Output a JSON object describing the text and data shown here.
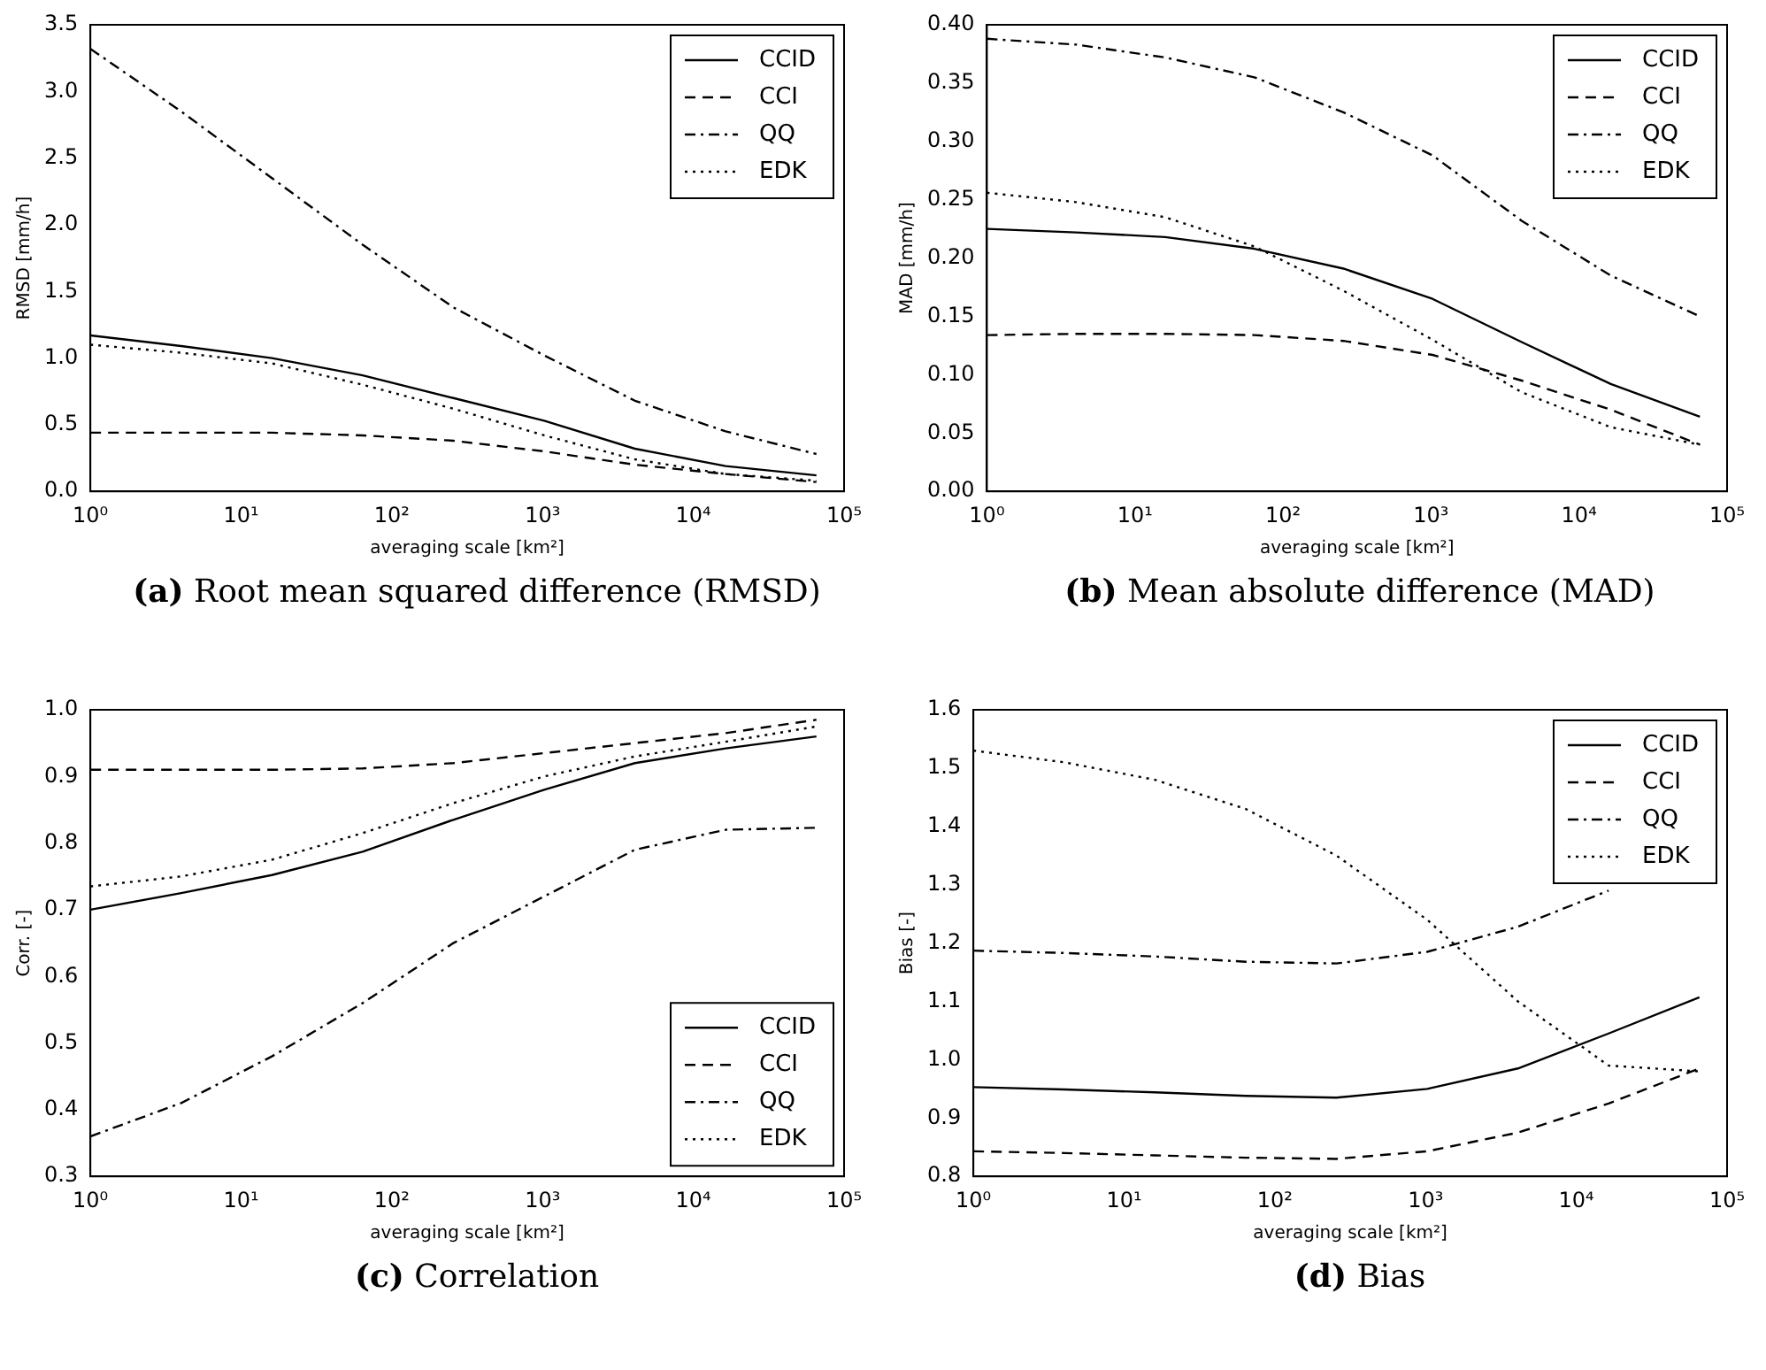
{
  "chart_data": [
    {
      "type": "line",
      "title": "(a) Root mean squared difference (RMSD)",
      "xlabel": "averaging scale [km²]",
      "ylabel": "RMSD [mm/h]",
      "log": "x",
      "grid": false,
      "legend": "top right",
      "marker": "none",
      "x": [
        1,
        4,
        16,
        64,
        256,
        1024,
        4096,
        16384,
        65536
      ],
      "xlim": [
        1,
        100000
      ],
      "xticks": [
        {
          "value": 1,
          "label": "10⁰"
        },
        {
          "value": 10,
          "label": "10¹"
        },
        {
          "value": 100,
          "label": "10²"
        },
        {
          "value": 1000,
          "label": "10³"
        },
        {
          "value": 10000,
          "label": "10⁴"
        },
        {
          "value": 100000,
          "label": "10⁵"
        }
      ],
      "ylim": [
        0,
        3.5
      ],
      "yticks": [
        {
          "value": 0,
          "label": "0.0"
        },
        {
          "value": 0.5,
          "label": "0.5"
        },
        {
          "value": 1,
          "label": "1.0"
        },
        {
          "value": 1.5,
          "label": "1.5"
        },
        {
          "value": 2,
          "label": "2.0"
        },
        {
          "value": 2.5,
          "label": "2.5"
        },
        {
          "value": 3,
          "label": "3.0"
        },
        {
          "value": 3.5,
          "label": "3.5"
        }
      ],
      "series": [
        {
          "name": "CCID",
          "color": "#000000",
          "line_style": "solid",
          "values": [
            1.17,
            1.09,
            1.0,
            0.87,
            0.7,
            0.53,
            0.32,
            0.19,
            0.12
          ]
        },
        {
          "name": "CCI",
          "color": "#000000",
          "line_style": "dashed",
          "values": [
            0.44,
            0.44,
            0.44,
            0.42,
            0.38,
            0.3,
            0.2,
            0.13,
            0.07
          ]
        },
        {
          "name": "QQ",
          "color": "#000000",
          "line_style": "dashdot",
          "values": [
            3.32,
            2.85,
            2.35,
            1.85,
            1.38,
            1.02,
            0.68,
            0.45,
            0.28
          ]
        },
        {
          "name": "EDK",
          "color": "#000000",
          "line_style": "dotted",
          "values": [
            1.1,
            1.04,
            0.96,
            0.8,
            0.62,
            0.42,
            0.24,
            0.13,
            0.08
          ]
        }
      ]
    },
    {
      "type": "line",
      "title": "(b) Mean absolute difference (MAD)",
      "xlabel": "averaging scale [km²]",
      "ylabel": "MAD [mm/h]",
      "log": "x",
      "grid": false,
      "legend": "top right",
      "marker": "none",
      "x": [
        1,
        4,
        16,
        64,
        256,
        1024,
        4096,
        16384,
        65536
      ],
      "xlim": [
        1,
        100000
      ],
      "xticks": [
        {
          "value": 1,
          "label": "10⁰"
        },
        {
          "value": 10,
          "label": "10¹"
        },
        {
          "value": 100,
          "label": "10²"
        },
        {
          "value": 1000,
          "label": "10³"
        },
        {
          "value": 10000,
          "label": "10⁴"
        },
        {
          "value": 100000,
          "label": "10⁵"
        }
      ],
      "ylim": [
        0,
        0.4
      ],
      "yticks": [
        {
          "value": 0,
          "label": "0.00"
        },
        {
          "value": 0.05,
          "label": "0.05"
        },
        {
          "value": 0.1,
          "label": "0.10"
        },
        {
          "value": 0.15,
          "label": "0.15"
        },
        {
          "value": 0.2,
          "label": "0.20"
        },
        {
          "value": 0.25,
          "label": "0.25"
        },
        {
          "value": 0.3,
          "label": "0.30"
        },
        {
          "value": 0.35,
          "label": "0.35"
        },
        {
          "value": 0.4,
          "label": "0.40"
        }
      ],
      "series": [
        {
          "name": "CCID",
          "color": "#000000",
          "line_style": "solid",
          "values": [
            0.225,
            0.222,
            0.218,
            0.208,
            0.191,
            0.165,
            0.128,
            0.092,
            0.064
          ]
        },
        {
          "name": "CCI",
          "color": "#000000",
          "line_style": "dashed",
          "values": [
            0.134,
            0.135,
            0.135,
            0.134,
            0.129,
            0.117,
            0.095,
            0.07,
            0.04
          ]
        },
        {
          "name": "QQ",
          "color": "#000000",
          "line_style": "dashdot",
          "values": [
            0.388,
            0.383,
            0.372,
            0.355,
            0.325,
            0.288,
            0.232,
            0.185,
            0.15
          ]
        },
        {
          "name": "EDK",
          "color": "#000000",
          "line_style": "dotted",
          "values": [
            0.256,
            0.248,
            0.235,
            0.21,
            0.172,
            0.13,
            0.085,
            0.055,
            0.04
          ]
        }
      ]
    },
    {
      "type": "line",
      "title": "(c) Correlation",
      "xlabel": "averaging scale [km²]",
      "ylabel": "Corr. [-]",
      "log": "x",
      "grid": false,
      "legend": "bottom right",
      "marker": "none",
      "x": [
        1,
        4,
        16,
        64,
        256,
        1024,
        4096,
        16384,
        65536
      ],
      "xlim": [
        1,
        100000
      ],
      "xticks": [
        {
          "value": 1,
          "label": "10⁰"
        },
        {
          "value": 10,
          "label": "10¹"
        },
        {
          "value": 100,
          "label": "10²"
        },
        {
          "value": 1000,
          "label": "10³"
        },
        {
          "value": 10000,
          "label": "10⁴"
        },
        {
          "value": 100000,
          "label": "10⁵"
        }
      ],
      "ylim": [
        0.3,
        1.0
      ],
      "yticks": [
        0.3,
        0.4,
        0.5,
        0.6,
        0.7,
        0.8,
        0.9,
        {
          "value": 1,
          "label": "1.0"
        }
      ],
      "series": [
        {
          "name": "CCID",
          "color": "#000000",
          "line_style": "solid",
          "values": [
            0.7,
            0.725,
            0.752,
            0.787,
            0.835,
            0.88,
            0.92,
            0.942,
            0.96
          ]
        },
        {
          "name": "CCI",
          "color": "#000000",
          "line_style": "dashed",
          "values": [
            0.91,
            0.91,
            0.91,
            0.912,
            0.92,
            0.935,
            0.95,
            0.965,
            0.985
          ]
        },
        {
          "name": "QQ",
          "color": "#000000",
          "line_style": "dashdot",
          "values": [
            0.36,
            0.41,
            0.48,
            0.56,
            0.65,
            0.72,
            0.79,
            0.82,
            0.823
          ]
        },
        {
          "name": "EDK",
          "color": "#000000",
          "line_style": "dotted",
          "values": [
            0.735,
            0.75,
            0.775,
            0.815,
            0.86,
            0.9,
            0.93,
            0.952,
            0.975
          ]
        }
      ]
    },
    {
      "type": "line",
      "title": "(d) Bias",
      "xlabel": "averaging scale [km²]",
      "ylabel": "Bias [-]",
      "log": "x",
      "grid": false,
      "legend": "top right",
      "marker": "none",
      "x": [
        1,
        4,
        16,
        64,
        256,
        1024,
        4096,
        16384,
        65536
      ],
      "xlim": [
        1,
        100000
      ],
      "xticks": [
        {
          "value": 1,
          "label": "10⁰"
        },
        {
          "value": 10,
          "label": "10¹"
        },
        {
          "value": 100,
          "label": "10²"
        },
        {
          "value": 1000,
          "label": "10³"
        },
        {
          "value": 10000,
          "label": "10⁴"
        },
        {
          "value": 100000,
          "label": "10⁵"
        }
      ],
      "ylim": [
        0.8,
        1.6
      ],
      "yticks": [
        0.8,
        0.9,
        {
          "value": 1,
          "label": "1.0"
        },
        1.1,
        1.2,
        1.3,
        1.4,
        1.5,
        1.6
      ],
      "series": [
        {
          "name": "CCID",
          "color": "#000000",
          "line_style": "solid",
          "values": [
            0.953,
            0.949,
            0.944,
            0.938,
            0.935,
            0.95,
            0.985,
            1.045,
            1.107
          ]
        },
        {
          "name": "CCI",
          "color": "#000000",
          "line_style": "dashed",
          "values": [
            0.843,
            0.84,
            0.836,
            0.832,
            0.83,
            0.843,
            0.875,
            0.925,
            0.985
          ]
        },
        {
          "name": "QQ",
          "color": "#000000",
          "line_style": "dashdot",
          "values": [
            1.187,
            1.183,
            1.177,
            1.168,
            1.165,
            1.185,
            1.228,
            1.29,
            null
          ]
        },
        {
          "name": "EDK",
          "color": "#000000",
          "line_style": "dotted",
          "values": [
            1.53,
            1.51,
            1.48,
            1.43,
            1.35,
            1.24,
            1.1,
            0.99,
            0.98
          ]
        }
      ]
    }
  ]
}
